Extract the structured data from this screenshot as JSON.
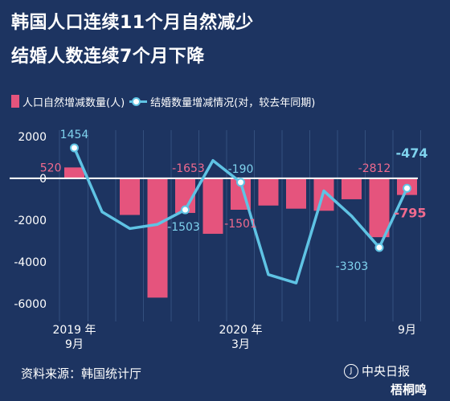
{
  "title_line1": "韩国人口连续11个月自然减少",
  "title_line2": "结婚人数连续7个月下降",
  "legend": {
    "bar_label": "人口自然增减数量(人)",
    "line_label": "结婚数量增减情况(对，较去年同期)"
  },
  "source": "资料来源：韩国统计厅",
  "logo_text": "中央日报",
  "logo_mark": "J",
  "watermark": "梧桐鸣",
  "colors": {
    "background": "#1d3461",
    "bar": "#e5547d",
    "line": "#5fc3e4",
    "zero_line": "#ffffff",
    "grid": "#34507e",
    "pink_label": "#f06a8e",
    "blue_label": "#7fd3ee"
  },
  "chart_data": {
    "type": "bar",
    "x_tick_labels": [
      {
        "index": 0,
        "line1": "2019 年",
        "line2": "9月"
      },
      {
        "index": 6,
        "line1": "2020 年",
        "line2": "3月"
      },
      {
        "index": 12,
        "line1": "9月",
        "line2": ""
      }
    ],
    "y_ticks": [
      2000,
      0,
      -2000,
      -4000,
      -6000
    ],
    "y_tick_labels": [
      "2000",
      "0",
      "-2000",
      "-4000",
      "-6000"
    ],
    "ylim": [
      -6300,
      2300
    ],
    "grid": true,
    "months": 13,
    "bar_values": [
      520,
      30,
      -1750,
      -5700,
      -1653,
      -2650,
      -1501,
      -1300,
      -1450,
      -1550,
      -1000,
      -2812,
      -795
    ],
    "line_values": [
      1454,
      -1600,
      -2400,
      -2200,
      -1503,
      850,
      -190,
      -4600,
      -5000,
      -600,
      -1800,
      -3303,
      -474
    ],
    "annotations": [
      {
        "text": "520",
        "series": "bar",
        "index": 0,
        "pos": "left"
      },
      {
        "text": "1454",
        "series": "line",
        "index": 0,
        "pos": "above"
      },
      {
        "text": "-1653",
        "series": "bar",
        "index": 4,
        "pos": "above-right"
      },
      {
        "text": "-1503",
        "series": "line",
        "index": 4,
        "pos": "below-right"
      },
      {
        "text": "-190",
        "series": "line",
        "index": 6,
        "pos": "above"
      },
      {
        "text": "-1501",
        "series": "bar",
        "index": 6,
        "pos": "below"
      },
      {
        "text": "-2812",
        "series": "bar",
        "index": 11,
        "pos": "above-left"
      },
      {
        "text": "-3303",
        "series": "line",
        "index": 11,
        "pos": "below-left"
      },
      {
        "text": "-474",
        "series": "line",
        "index": 12,
        "pos": "above-bold"
      },
      {
        "text": "-795",
        "series": "bar",
        "index": 12,
        "pos": "below-bold"
      }
    ]
  }
}
